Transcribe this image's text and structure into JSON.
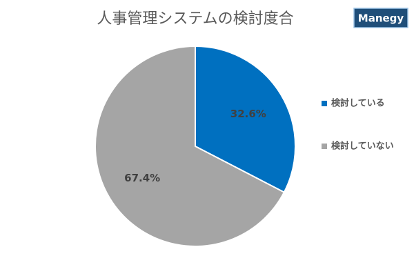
{
  "logo": "Manegy",
  "chart_data": {
    "type": "pie",
    "title": "人事管理システムの検討度合",
    "categories": [
      "検討している",
      "検討していない"
    ],
    "values": [
      32.6,
      67.4
    ],
    "value_labels": [
      "32.6%",
      "67.4%"
    ],
    "colors": [
      "#0070c0",
      "#a5a5a5"
    ],
    "legend": "right"
  }
}
